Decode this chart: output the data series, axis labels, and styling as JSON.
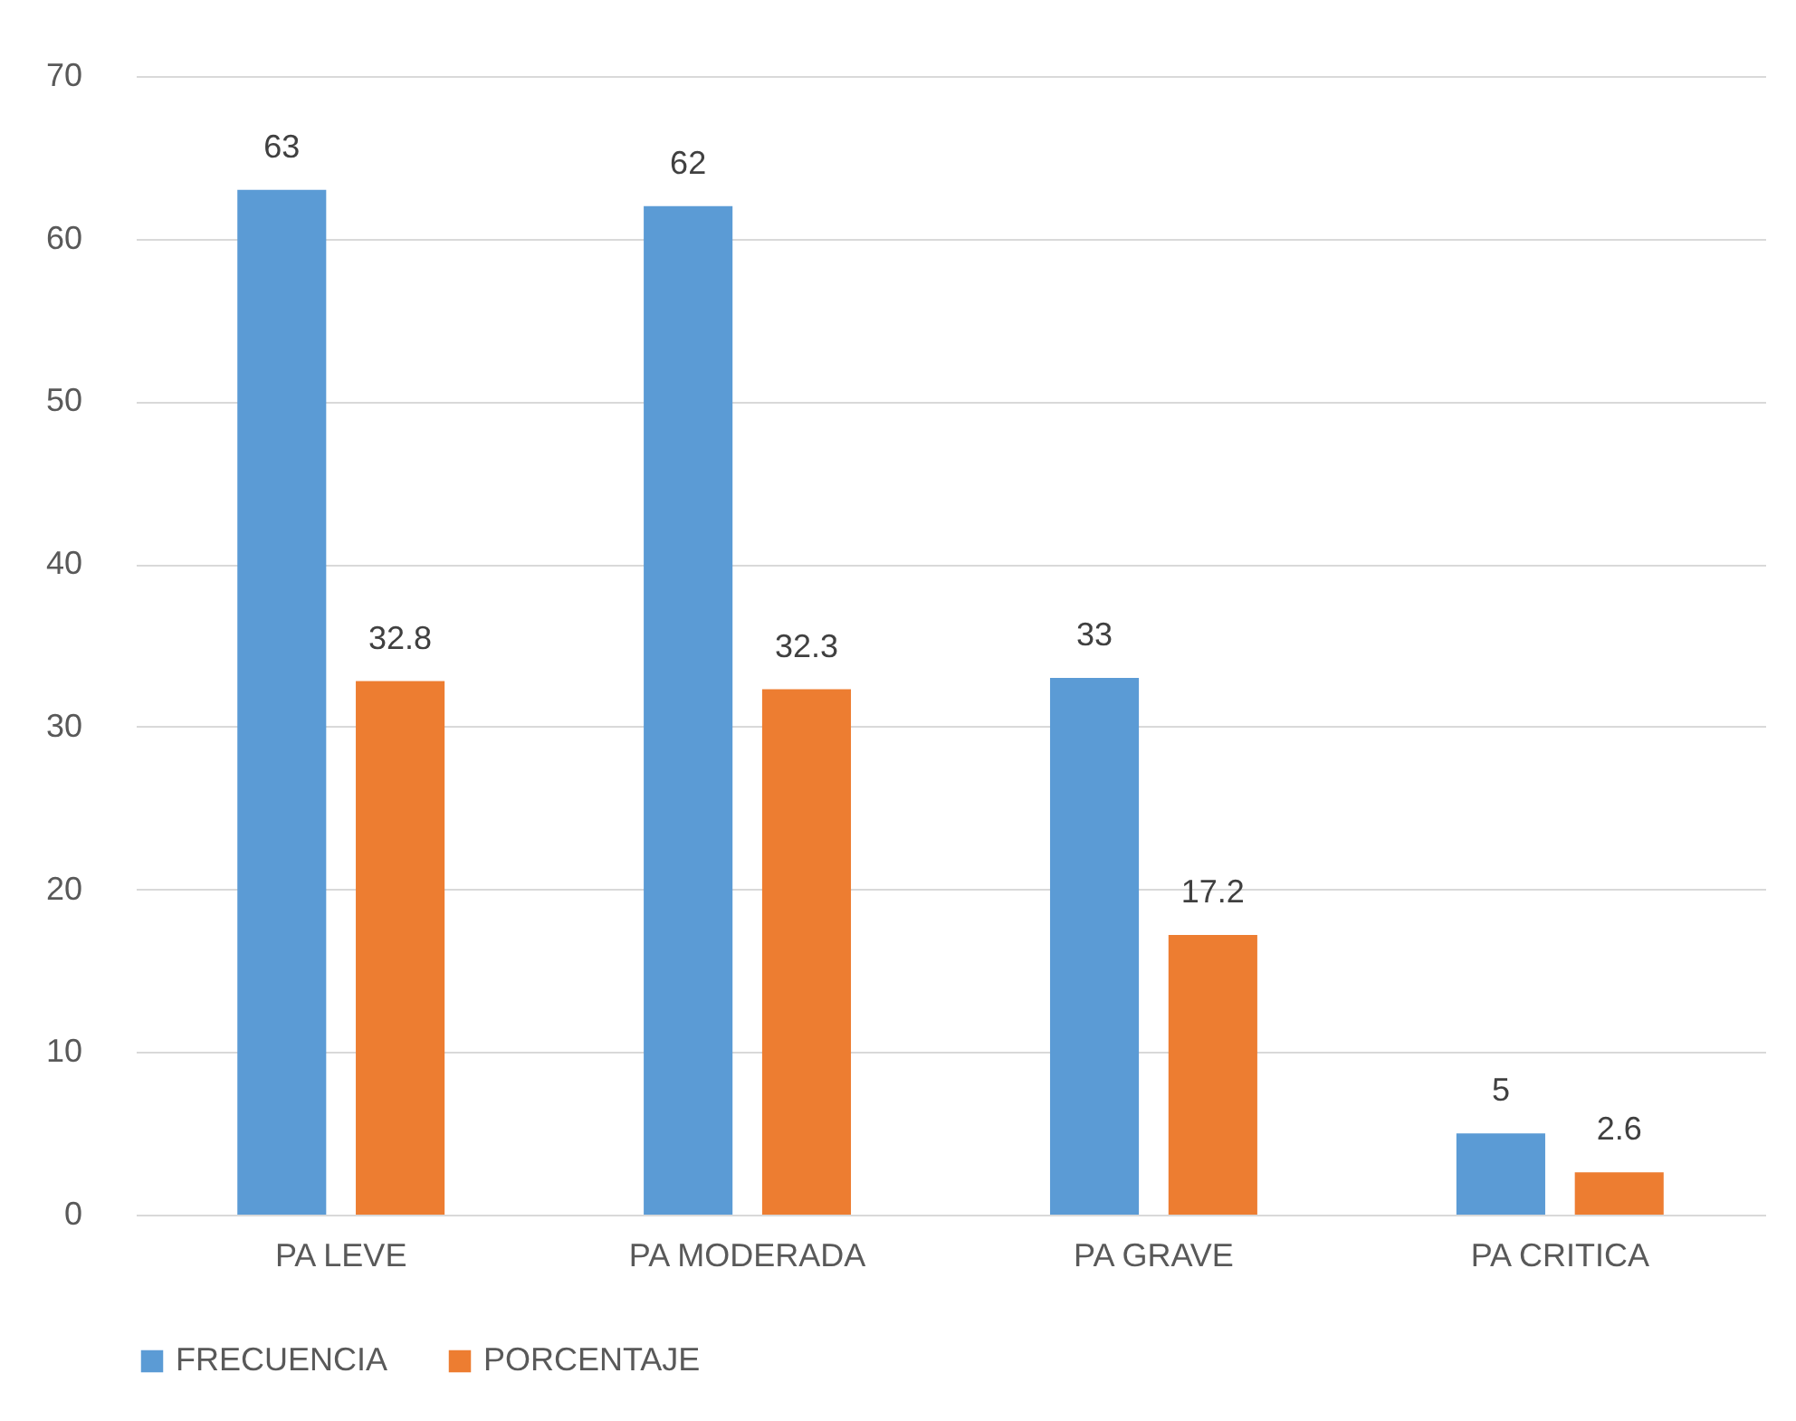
{
  "chart_data": {
    "type": "bar",
    "categories": [
      "PA LEVE",
      "PA MODERADA",
      "PA GRAVE",
      "PA CRITICA"
    ],
    "series": [
      {
        "name": "FRECUENCIA",
        "color": "#5b9bd5",
        "values": [
          63,
          62,
          33,
          5
        ]
      },
      {
        "name": "PORCENTAJE",
        "color": "#ed7d31",
        "values": [
          32.8,
          32.3,
          17.2,
          2.6
        ]
      }
    ],
    "ylim": [
      0,
      70
    ],
    "yticks": [
      0,
      10,
      20,
      30,
      40,
      50,
      60,
      70
    ],
    "grid": "y",
    "legend": "bottom",
    "data_labels": true
  }
}
